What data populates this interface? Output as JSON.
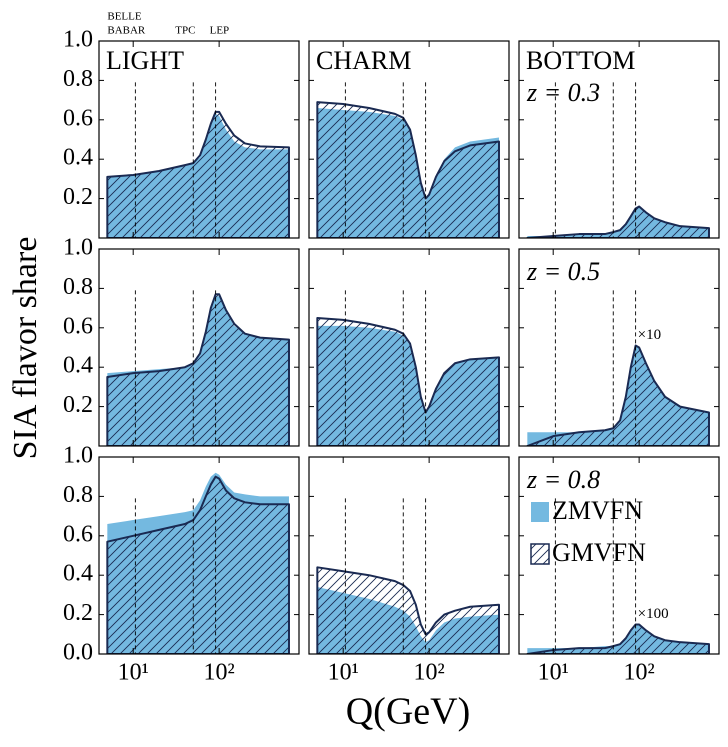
{
  "figure": {
    "ylabel": "SIA flavor share",
    "xlabel": "Q(GeV)",
    "experiments": [
      {
        "label": [
          "BELLE",
          "BABAR"
        ],
        "Q": 10.6
      },
      {
        "label": [
          "TPC"
        ],
        "Q": 50
      },
      {
        "label": [
          "LEP"
        ],
        "Q": 91
      }
    ]
  },
  "chart_data": [
    {
      "type": "area",
      "title": "LIGHT",
      "xscale": "log",
      "xlim": [
        4,
        850
      ],
      "xticks": [
        10,
        100
      ],
      "ylim": [
        0,
        1
      ],
      "yticks": [
        0.2,
        0.4,
        0.6,
        0.8,
        {
          "value": 1,
          "label": "1.0"
        }
      ],
      "ytick_labels": true,
      "x": [
        5,
        10,
        20,
        40,
        50,
        60,
        70,
        80,
        91,
        100,
        120,
        150,
        200,
        300,
        650
      ],
      "series": [
        {
          "color": "#74b9e0",
          "values": [
            0.31,
            0.32,
            0.34,
            0.37,
            0.38,
            0.41,
            0.49,
            0.57,
            0.63,
            0.62,
            0.55,
            0.49,
            0.46,
            0.45,
            0.45
          ]
        },
        {
          "color": "#1a2a52",
          "hatch": true,
          "values": [
            0.31,
            0.32,
            0.34,
            0.37,
            0.38,
            0.42,
            0.5,
            0.58,
            0.64,
            0.64,
            0.58,
            0.52,
            0.48,
            0.465,
            0.46
          ]
        }
      ]
    },
    {
      "type": "area",
      "title": "CHARM",
      "xscale": "log",
      "xlim": [
        4,
        850
      ],
      "xticks": [
        10,
        100
      ],
      "ylim": [
        0,
        1
      ],
      "yticks": [
        0.2,
        0.4,
        0.6,
        0.8,
        1
      ],
      "x": [
        5,
        10,
        20,
        40,
        50,
        60,
        70,
        80,
        91,
        100,
        120,
        150,
        200,
        300,
        650
      ],
      "series": [
        {
          "color": "#74b9e0",
          "values": [
            0.66,
            0.65,
            0.64,
            0.62,
            0.6,
            0.54,
            0.41,
            0.27,
            0.19,
            0.22,
            0.32,
            0.4,
            0.46,
            0.49,
            0.51
          ]
        },
        {
          "color": "#1a2a52",
          "hatch": true,
          "values": [
            0.69,
            0.68,
            0.66,
            0.63,
            0.61,
            0.55,
            0.42,
            0.28,
            0.2,
            0.22,
            0.31,
            0.39,
            0.44,
            0.47,
            0.49
          ]
        }
      ]
    },
    {
      "type": "area",
      "title": "BOTTOM",
      "annotation": "z = 0.3",
      "xscale": "log",
      "xlim": [
        4,
        850
      ],
      "xticks": [
        10,
        100
      ],
      "ylim": [
        0,
        1
      ],
      "yticks": [
        0.2,
        0.4,
        0.6,
        0.8,
        1
      ],
      "x": [
        5,
        10,
        20,
        40,
        50,
        60,
        70,
        80,
        91,
        100,
        120,
        150,
        200,
        300,
        650
      ],
      "series": [
        {
          "color": "#74b9e0",
          "values": [
            0.01,
            0.01,
            0.02,
            0.02,
            0.03,
            0.04,
            0.07,
            0.11,
            0.15,
            0.16,
            0.13,
            0.1,
            0.08,
            0.06,
            0.05
          ]
        },
        {
          "color": "#1a2a52",
          "hatch": true,
          "values": [
            0,
            0.01,
            0.02,
            0.02,
            0.03,
            0.04,
            0.07,
            0.11,
            0.15,
            0.16,
            0.13,
            0.1,
            0.08,
            0.06,
            0.05
          ]
        }
      ]
    },
    {
      "type": "area",
      "xscale": "log",
      "xlim": [
        4,
        850
      ],
      "xticks": [
        10,
        100
      ],
      "ylim": [
        0,
        1
      ],
      "yticks": [
        0.2,
        0.4,
        0.6,
        0.8,
        {
          "value": 1,
          "label": "1.0"
        }
      ],
      "ytick_labels": true,
      "x": [
        5,
        10,
        20,
        40,
        50,
        60,
        70,
        80,
        91,
        100,
        120,
        150,
        200,
        300,
        650
      ],
      "series": [
        {
          "color": "#74b9e0",
          "values": [
            0.37,
            0.38,
            0.39,
            0.4,
            0.42,
            0.46,
            0.57,
            0.69,
            0.76,
            0.76,
            0.68,
            0.61,
            0.57,
            0.55,
            0.54
          ]
        },
        {
          "color": "#1a2a52",
          "hatch": true,
          "values": [
            0.35,
            0.37,
            0.38,
            0.4,
            0.42,
            0.47,
            0.58,
            0.7,
            0.77,
            0.77,
            0.69,
            0.62,
            0.57,
            0.55,
            0.54
          ]
        }
      ]
    },
    {
      "type": "area",
      "xscale": "log",
      "xlim": [
        4,
        850
      ],
      "xticks": [
        10,
        100
      ],
      "ylim": [
        0,
        1
      ],
      "yticks": [
        0.2,
        0.4,
        0.6,
        0.8,
        1
      ],
      "x": [
        5,
        10,
        20,
        40,
        50,
        60,
        70,
        80,
        91,
        100,
        120,
        150,
        200,
        300,
        650
      ],
      "series": [
        {
          "color": "#74b9e0",
          "values": [
            0.61,
            0.61,
            0.6,
            0.58,
            0.56,
            0.51,
            0.39,
            0.24,
            0.16,
            0.2,
            0.29,
            0.37,
            0.42,
            0.44,
            0.45
          ]
        },
        {
          "color": "#1a2a52",
          "hatch": true,
          "values": [
            0.65,
            0.64,
            0.62,
            0.59,
            0.57,
            0.52,
            0.4,
            0.25,
            0.17,
            0.2,
            0.29,
            0.37,
            0.42,
            0.44,
            0.45
          ]
        }
      ]
    },
    {
      "type": "area",
      "annotation": "z = 0.5",
      "scale_label": "×10",
      "xscale": "log",
      "xlim": [
        4,
        850
      ],
      "xticks": [
        10,
        100
      ],
      "ylim": [
        0,
        1
      ],
      "yticks": [
        0.2,
        0.4,
        0.6,
        0.8,
        1
      ],
      "x": [
        5,
        10,
        20,
        40,
        50,
        60,
        70,
        80,
        91,
        100,
        120,
        150,
        200,
        300,
        650
      ],
      "series": [
        {
          "color": "#74b9e0",
          "values": [
            0.07,
            0.07,
            0.07,
            0.08,
            0.09,
            0.13,
            0.25,
            0.4,
            0.51,
            0.5,
            0.42,
            0.33,
            0.25,
            0.2,
            0.17
          ]
        },
        {
          "color": "#1a2a52",
          "hatch": true,
          "values": [
            0,
            0.05,
            0.07,
            0.08,
            0.09,
            0.13,
            0.25,
            0.4,
            0.51,
            0.5,
            0.42,
            0.33,
            0.25,
            0.2,
            0.17
          ]
        }
      ]
    },
    {
      "type": "area",
      "xscale": "log",
      "xlim": [
        4,
        850
      ],
      "xticks": [
        {
          "value": 10,
          "label": "10¹"
        },
        {
          "value": 100,
          "label": "10²"
        }
      ],
      "xtick_labels": true,
      "ylim": [
        0,
        1
      ],
      "yticks": [
        {
          "value": 0,
          "label": "0.0"
        },
        0.2,
        0.4,
        0.6,
        0.8,
        {
          "value": 1,
          "label": "1.0"
        }
      ],
      "ytick_labels": true,
      "x": [
        5,
        10,
        20,
        40,
        50,
        60,
        70,
        80,
        91,
        100,
        120,
        150,
        200,
        300,
        650
      ],
      "series": [
        {
          "color": "#74b9e0",
          "values": [
            0.66,
            0.68,
            0.7,
            0.72,
            0.73,
            0.78,
            0.85,
            0.9,
            0.92,
            0.91,
            0.86,
            0.82,
            0.81,
            0.8,
            0.8
          ]
        },
        {
          "color": "#1a2a52",
          "hatch": true,
          "values": [
            0.57,
            0.6,
            0.63,
            0.66,
            0.68,
            0.73,
            0.8,
            0.86,
            0.9,
            0.89,
            0.83,
            0.79,
            0.77,
            0.76,
            0.76
          ]
        }
      ]
    },
    {
      "type": "area",
      "xscale": "log",
      "xlim": [
        4,
        850
      ],
      "xticks": [
        {
          "value": 10,
          "label": "10¹"
        },
        {
          "value": 100,
          "label": "10²"
        }
      ],
      "xtick_labels": true,
      "ylim": [
        0,
        1
      ],
      "yticks": [
        0,
        0.2,
        0.4,
        0.6,
        0.8,
        1
      ],
      "x": [
        5,
        10,
        20,
        40,
        50,
        60,
        70,
        80,
        91,
        100,
        120,
        150,
        200,
        300,
        650
      ],
      "series": [
        {
          "color": "#74b9e0",
          "values": [
            0.34,
            0.31,
            0.28,
            0.24,
            0.22,
            0.19,
            0.14,
            0.09,
            0.06,
            0.07,
            0.12,
            0.16,
            0.18,
            0.19,
            0.2
          ]
        },
        {
          "color": "#1a2a52",
          "hatch": true,
          "values": [
            0.44,
            0.42,
            0.4,
            0.37,
            0.35,
            0.32,
            0.25,
            0.15,
            0.1,
            0.11,
            0.16,
            0.2,
            0.22,
            0.24,
            0.25
          ]
        }
      ]
    },
    {
      "type": "area",
      "annotation": "z = 0.8",
      "scale_label": "×100",
      "legend": "center left",
      "xscale": "log",
      "xlim": [
        4,
        850
      ],
      "xticks": [
        {
          "value": 10,
          "label": "10¹"
        },
        {
          "value": 100,
          "label": "10²"
        }
      ],
      "xtick_labels": true,
      "ylim": [
        0,
        1
      ],
      "yticks": [
        0,
        0.2,
        0.4,
        0.6,
        0.8,
        1
      ],
      "x": [
        5,
        10,
        20,
        40,
        50,
        60,
        70,
        80,
        91,
        100,
        120,
        150,
        200,
        300,
        650
      ],
      "series": [
        {
          "name": "ZMVFN",
          "color": "#74b9e0",
          "values": [
            0.03,
            0.03,
            0.03,
            0.04,
            0.04,
            0.05,
            0.08,
            0.12,
            0.15,
            0.15,
            0.12,
            0.09,
            0.07,
            0.06,
            0.05
          ]
        },
        {
          "name": "GMVFN",
          "color": "#1a2a52",
          "hatch": true,
          "values": [
            0,
            0.02,
            0.03,
            0.03,
            0.04,
            0.05,
            0.08,
            0.12,
            0.15,
            0.15,
            0.12,
            0.09,
            0.07,
            0.06,
            0.05
          ]
        }
      ]
    }
  ]
}
